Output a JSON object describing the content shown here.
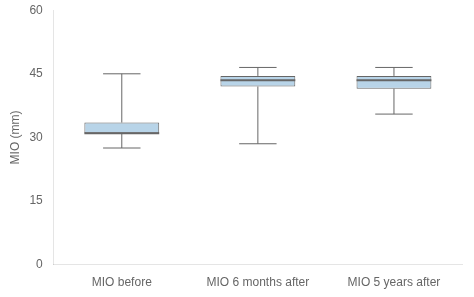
{
  "chart_data": {
    "type": "box",
    "categories": [
      "MIO before",
      "MIO 6 months after",
      "MIO 5 years after"
    ],
    "boxes": [
      {
        "q1": 31.0,
        "median": 31.0,
        "q3": 33.5,
        "whislo": 27.5,
        "whishi": 45.0
      },
      {
        "q1": 42.0,
        "median": 43.5,
        "q3": 44.5,
        "whislo": 28.5,
        "whishi": 46.5
      },
      {
        "q1": 41.5,
        "median": 43.5,
        "q3": 44.5,
        "whislo": 35.5,
        "whishi": 46.5
      }
    ],
    "ylabel": "MIO (mm)",
    "ylim": [
      0,
      60
    ],
    "yticks": [
      0,
      15,
      30,
      45,
      60
    ],
    "color": "#b8d4e8",
    "grid": false
  }
}
